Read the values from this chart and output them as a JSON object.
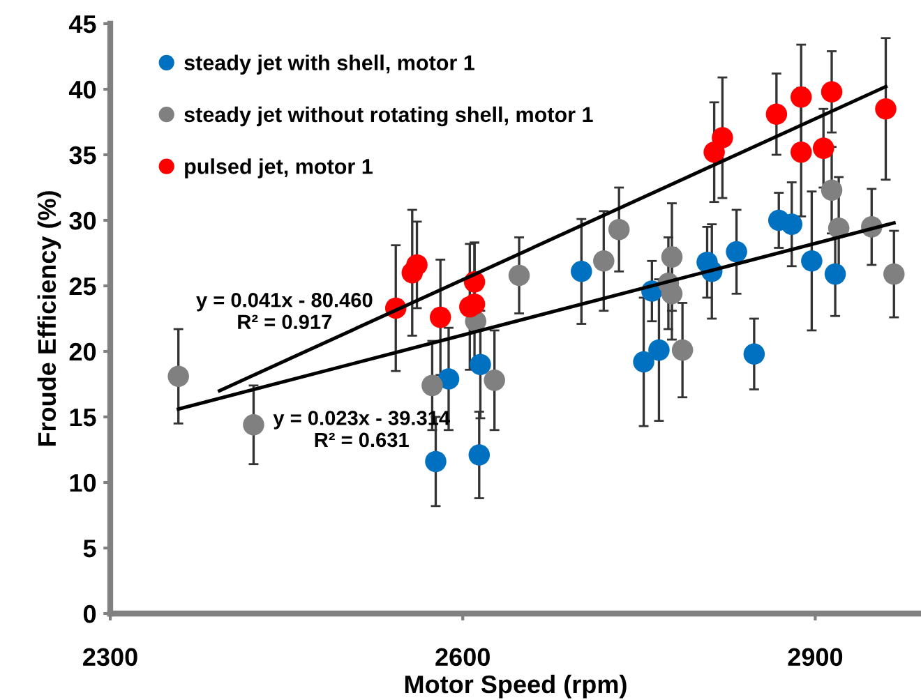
{
  "chart_data": {
    "type": "scatter",
    "xlabel": "Motor Speed (rpm)",
    "ylabel": "Froude Efficiency (%)",
    "xlim": [
      2300,
      2990
    ],
    "xticks": [
      2300,
      2600,
      2900
    ],
    "ylim": [
      0,
      45
    ],
    "yticks": [
      0,
      5,
      10,
      15,
      20,
      25,
      30,
      35,
      40,
      45
    ],
    "grid": false,
    "legend": "top left",
    "marker": "circle",
    "series": [
      {
        "name": "steady jet with shell, motor 1",
        "color": "#0070c0",
        "x": [
          2577,
          2588,
          2614,
          2615,
          2701,
          2754,
          2761,
          2767,
          2808,
          2812,
          2833,
          2848,
          2869,
          2880,
          2897,
          2917
        ],
        "values": [
          11.6,
          17.9,
          12.1,
          19.0,
          26.1,
          19.2,
          24.6,
          20.1,
          26.8,
          26.1,
          27.6,
          19.8,
          30.0,
          29.7,
          26.9,
          25.9
        ],
        "errors": [
          3.4,
          3.9,
          3.3,
          4.1,
          4.0,
          4.9,
          2.3,
          5.4,
          2.7,
          3.6,
          3.2,
          2.7,
          2.1,
          3.2,
          5.3,
          3.2
        ]
      },
      {
        "name": "steady jet without rotating shell, motor 1",
        "color": "#808080",
        "x": [
          2358,
          2422,
          2574,
          2611,
          2627,
          2648,
          2720,
          2733,
          2775,
          2778,
          2778,
          2787,
          2914,
          2920,
          2948,
          2967
        ],
        "values": [
          18.1,
          14.4,
          17.4,
          22.3,
          17.8,
          25.8,
          26.9,
          29.3,
          25.2,
          24.4,
          27.2,
          20.1,
          32.3,
          29.4,
          29.5,
          25.9
        ],
        "errors": [
          3.6,
          3.0,
          3.4,
          null,
          3.8,
          2.9,
          3.8,
          3.2,
          3.5,
          3.5,
          4.1,
          3.6,
          3.3,
          3.9,
          2.9,
          3.3
        ]
      },
      {
        "name": "pulsed jet, motor 1",
        "color": "#ff0000",
        "x": [
          2543,
          2557,
          2561,
          2581,
          2606,
          2610,
          2610,
          2814,
          2821,
          2867,
          2888,
          2888,
          2907,
          2914,
          2960
        ],
        "values": [
          23.3,
          26.0,
          26.6,
          22.6,
          23.4,
          23.6,
          25.3,
          35.2,
          36.3,
          38.1,
          39.4,
          35.2,
          35.5,
          39.8,
          38.5
        ],
        "errors": [
          4.8,
          4.8,
          3.3,
          4.4,
          4.8,
          4.7,
          3.0,
          3.8,
          4.6,
          3.1,
          4.0,
          4.9,
          3.0,
          3.1,
          5.4
        ]
      },
      {
        "type": "line",
        "color": "#000000",
        "marker": "none",
        "x": [
          2393,
          2960
        ],
        "values": [
          17.0,
          40.2
        ]
      },
      {
        "type": "line",
        "color": "#000000",
        "marker": "none",
        "x": [
          2358,
          2967
        ],
        "values": [
          15.6,
          29.8
        ]
      }
    ],
    "annotations": [
      "y = 0.041x - 80.460\nR² = 0.917",
      "y = 0.023x - 39.314\nR² = 0.631"
    ]
  }
}
